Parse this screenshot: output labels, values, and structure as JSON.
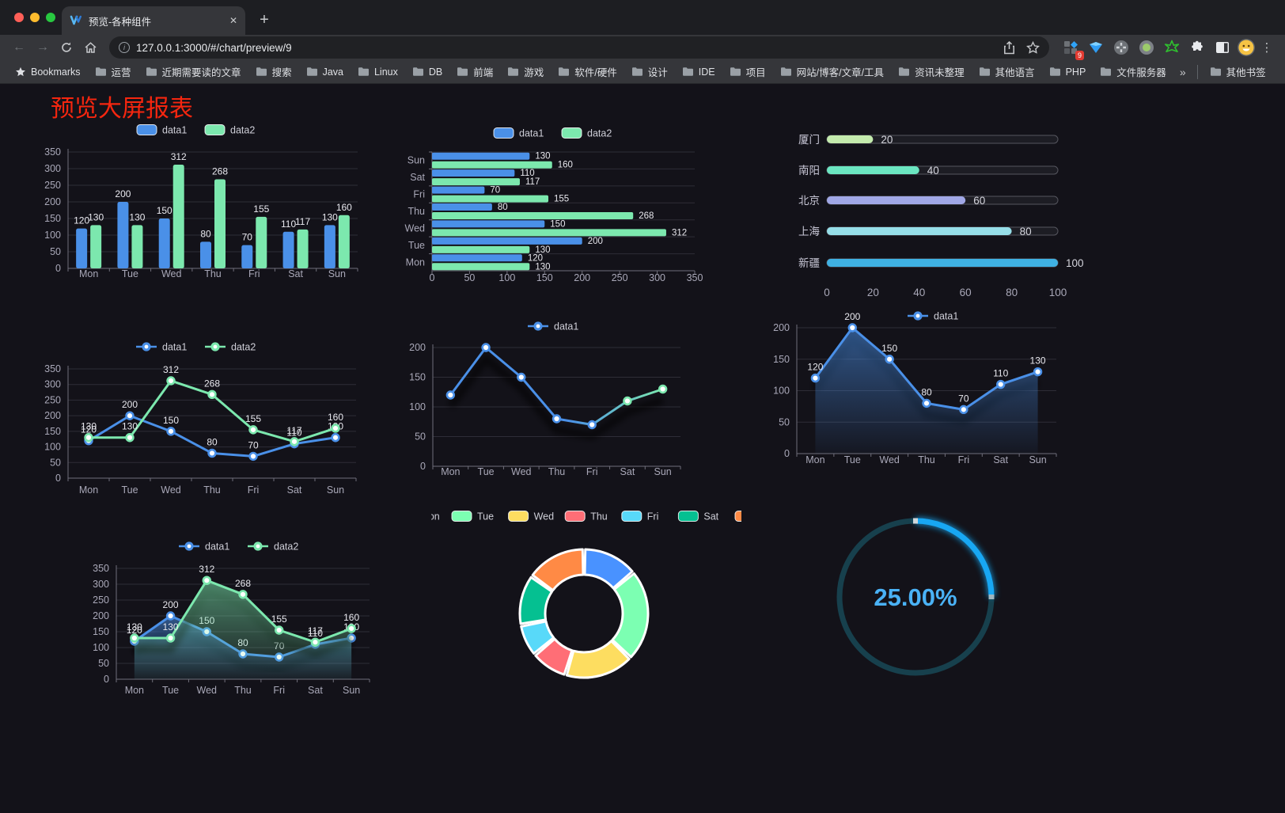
{
  "browser": {
    "tab_title": "预览-各种组件",
    "close_label": "✕",
    "new_tab_label": "+",
    "url": "127.0.0.1:3000/#/chart/preview/9",
    "extension_badge": "9",
    "menu_label": "⋮",
    "bookmarks_root_label": "Bookmarks",
    "bookmark_folders": [
      "运营",
      "近期需要读的文章",
      "搜索",
      "Java",
      "Linux",
      "DB",
      "前端",
      "游戏",
      "软件/硬件",
      "设计",
      "IDE",
      "项目",
      "网站/博客/文章/工具",
      "资讯未整理",
      "其他语言",
      "PHP",
      "文件服务器"
    ],
    "bookmarks_overflow": "»",
    "other_bookmarks_label": "其他书签",
    "traffic_colors": [
      "#ff5f57",
      "#febc2e",
      "#28c840"
    ]
  },
  "page": {
    "title": "预览大屏报表",
    "title_color": "#f5260f",
    "background": "#131219"
  },
  "chart_data": [
    {
      "id": "c1",
      "type": "bar",
      "categories": [
        "Mon",
        "Tue",
        "Wed",
        "Thu",
        "Fri",
        "Sat",
        "Sun"
      ],
      "series": [
        {
          "name": "data1",
          "color": "#4a90e8",
          "values": [
            120,
            200,
            150,
            80,
            70,
            110,
            130
          ]
        },
        {
          "name": "data2",
          "color": "#7ce8ae",
          "values": [
            130,
            130,
            312,
            268,
            155,
            117,
            160
          ]
        }
      ],
      "ylim": [
        0,
        350
      ],
      "ystep": 50,
      "legend_position": "top",
      "grid": true
    },
    {
      "id": "c2",
      "type": "hbar",
      "categories": [
        "Sun",
        "Sat",
        "Fri",
        "Thu",
        "Wed",
        "Tue",
        "Mon"
      ],
      "series": [
        {
          "name": "data1",
          "color": "#4a90e8",
          "values": [
            130,
            110,
            70,
            80,
            150,
            200,
            120
          ]
        },
        {
          "name": "data2",
          "color": "#7ce8ae",
          "values": [
            160,
            117,
            155,
            268,
            312,
            130,
            130
          ]
        }
      ],
      "xlim": [
        0,
        350
      ],
      "xstep": 50,
      "legend_position": "top",
      "grid": true
    },
    {
      "id": "c3",
      "type": "progress",
      "items": [
        {
          "label": "厦门",
          "value": 20,
          "color": "#c4ebad"
        },
        {
          "label": "南阳",
          "value": 40,
          "color": "#6be6c1"
        },
        {
          "label": "北京",
          "value": 60,
          "color": "#a0a7e6"
        },
        {
          "label": "上海",
          "value": 80,
          "color": "#96dee8"
        },
        {
          "label": "新疆",
          "value": 100,
          "color": "#3fb1e3"
        }
      ],
      "max": 100,
      "ticks": [
        0,
        20,
        40,
        60,
        80,
        100
      ]
    },
    {
      "id": "c4",
      "type": "line",
      "categories": [
        "Mon",
        "Tue",
        "Wed",
        "Thu",
        "Fri",
        "Sat",
        "Sun"
      ],
      "series": [
        {
          "name": "data1",
          "color": "#4a90e8",
          "values": [
            120,
            200,
            150,
            80,
            70,
            110,
            130
          ],
          "labels": true
        },
        {
          "name": "data2",
          "color": "#7ce8ae",
          "values": [
            130,
            130,
            312,
            268,
            155,
            117,
            160
          ],
          "labels": true
        }
      ],
      "ylim": [
        0,
        350
      ],
      "ystep": 50,
      "legend_position": "top"
    },
    {
      "id": "c5",
      "type": "line",
      "categories": [
        "Mon",
        "Tue",
        "Wed",
        "Thu",
        "Fri",
        "Sat",
        "Sun"
      ],
      "series": [
        {
          "name": "data1",
          "gradient": [
            "#4a90e8",
            "#7ce8ae"
          ],
          "color": "#4a90e8",
          "values": [
            120,
            200,
            150,
            80,
            70,
            110,
            130
          ],
          "labels": false,
          "shadow": true
        }
      ],
      "ylim": [
        0,
        200
      ],
      "ystep": 50,
      "legend_position": "top"
    },
    {
      "id": "c6",
      "type": "line",
      "categories": [
        "Mon",
        "Tue",
        "Wed",
        "Thu",
        "Fri",
        "Sat",
        "Sun"
      ],
      "series": [
        {
          "name": "data1",
          "color": "#4a90e8",
          "values": [
            120,
            200,
            150,
            80,
            70,
            110,
            130
          ],
          "labels": true,
          "area": true,
          "shadow": true
        }
      ],
      "ylim": [
        0,
        200
      ],
      "ystep": 50,
      "legend_position": "top"
    },
    {
      "id": "c7",
      "type": "line",
      "categories": [
        "Mon",
        "Tue",
        "Wed",
        "Thu",
        "Fri",
        "Sat",
        "Sun"
      ],
      "series": [
        {
          "name": "data1",
          "color": "#4a90e8",
          "values": [
            120,
            200,
            150,
            80,
            70,
            110,
            130
          ],
          "labels": true,
          "area": true,
          "shadow": true
        },
        {
          "name": "data2",
          "color": "#7ce8ae",
          "values": [
            130,
            130,
            312,
            268,
            155,
            117,
            160
          ],
          "labels": true,
          "area": true,
          "shadow": true
        }
      ],
      "ylim": [
        0,
        350
      ],
      "ystep": 50,
      "legend_position": "top"
    },
    {
      "id": "c8",
      "type": "donut",
      "labels": [
        "Mon",
        "Tue",
        "Wed",
        "Thu",
        "Fri",
        "Sat",
        "Sun"
      ],
      "values": [
        120,
        200,
        150,
        80,
        70,
        110,
        130
      ],
      "colors": [
        "#4992ff",
        "#7cffb2",
        "#fddd60",
        "#ff6e76",
        "#58d9f9",
        "#05c091",
        "#ff8a45"
      ],
      "border_color": "#ffffff"
    },
    {
      "id": "c9",
      "type": "ring",
      "value": 25,
      "display": "25.00%",
      "arc_color": "#18a7f3",
      "track_color": "#17404d",
      "text_color": "#4ab2f6"
    }
  ]
}
